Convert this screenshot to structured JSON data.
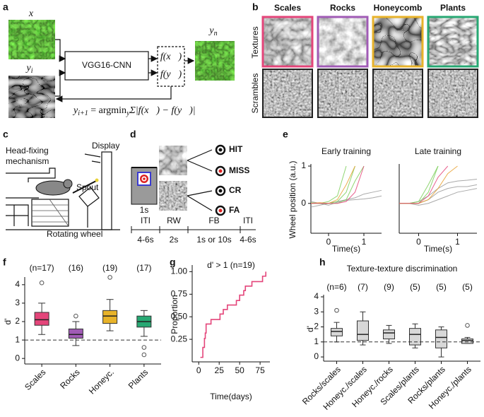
{
  "panels": {
    "a": {
      "letter": "a",
      "input": "x",
      "init": {
        "text": "y",
        "sub": "i"
      },
      "network": "VGG16-CNN",
      "features": [
        "f(x⃗)",
        "f(y⃗)"
      ],
      "output": {
        "text": "y",
        "sub": "n"
      },
      "equation": {
        "lhs": "y",
        "lhs_sub": "i+1",
        "op": " = argmin",
        "op_sub": "y",
        "rhs": "Σ|f(x⃗) − f(y⃗)|"
      }
    },
    "b": {
      "letter": "b",
      "columns": [
        {
          "name": "Scales",
          "color": "#e4457a"
        },
        {
          "name": "Rocks",
          "color": "#a05bb5"
        },
        {
          "name": "Honeycomb",
          "color": "#e8b32a"
        },
        {
          "name": "Plants",
          "color": "#27a873"
        }
      ],
      "rows": [
        "Textures",
        "Scrambles"
      ]
    },
    "c": {
      "letter": "c",
      "head_fixing": [
        "Head-fixing",
        "mechanism"
      ],
      "spout": "Spout",
      "display": "Display",
      "wheel": "Rotating wheel"
    },
    "d": {
      "letter": "d",
      "stim": "1s",
      "outcomes": [
        {
          "label": "HIT",
          "color": "#222222"
        },
        {
          "label": "MISS",
          "color": "#c0243a"
        },
        {
          "label": "CR",
          "color": "#222222"
        },
        {
          "label": "FA",
          "color": "#c0243a"
        }
      ],
      "timeline": [
        {
          "phase": "ITI",
          "duration": "4-6s"
        },
        {
          "phase": "RW",
          "duration": "2s"
        },
        {
          "phase": "FB",
          "duration": "1s or 10s"
        },
        {
          "phase": "ITI",
          "duration": "4-6s"
        }
      ]
    },
    "e": {
      "letter": "e"
    },
    "f": {
      "letter": "f"
    },
    "g": {
      "letter": "g"
    },
    "h": {
      "letter": "h"
    }
  },
  "chart_data": [
    {
      "type": "line",
      "title": "Early training",
      "ylabel": "Wheel position (a.u.)",
      "xlabel": "Time(s)",
      "x": [
        -0.5,
        -0.25,
        0,
        0.25,
        0.5,
        0.75,
        1.0,
        1.25,
        1.5
      ],
      "xlim": [
        -0.5,
        1.5
      ],
      "xticks": [
        0,
        1
      ],
      "ylim": [
        -0.8,
        1.0
      ],
      "yticks": [
        0,
        1
      ],
      "series": [
        {
          "color": "#9a9a9a",
          "values": [
            0.05,
            0.0,
            -0.05,
            0.03,
            0.08,
            0.1,
            0.12,
            0.15,
            0.2
          ]
        },
        {
          "color": "#9a9a9a",
          "values": [
            -0.1,
            -0.05,
            0,
            0.05,
            0.1,
            0.15,
            0.25,
            0.3,
            0.35
          ]
        },
        {
          "color": "#7ccf5a",
          "values": [
            0,
            0,
            0,
            0.05,
            0.3,
            1.0,
            null,
            null,
            null
          ]
        },
        {
          "color": "#7ccf5a",
          "values": [
            0.02,
            0,
            0,
            0,
            0.1,
            0.6,
            1.0,
            null,
            null
          ]
        },
        {
          "color": "#7ccf5a",
          "values": [
            0,
            0,
            0.05,
            0.2,
            1.0,
            null,
            null,
            null,
            null
          ]
        },
        {
          "color": "#e8a030",
          "values": [
            0,
            0.02,
            0,
            0.1,
            0.5,
            1.0,
            null,
            null,
            null
          ]
        },
        {
          "color": "#e4457a",
          "values": [
            0,
            0,
            0,
            0,
            0.05,
            0.3,
            1.0,
            null,
            null
          ]
        }
      ]
    },
    {
      "type": "line",
      "title": "Late training",
      "xlabel": "Time(s)",
      "x": [
        -0.5,
        -0.25,
        0,
        0.25,
        0.5,
        0.75,
        1.0,
        1.25,
        1.5
      ],
      "xlim": [
        -0.5,
        1.5
      ],
      "xticks": [
        0,
        1
      ],
      "ylim": [
        -0.8,
        1.0
      ],
      "series": [
        {
          "color": "#9a9a9a",
          "values": [
            0,
            0,
            0.05,
            0.2,
            0.4,
            0.55,
            0.6,
            0.62,
            0.65
          ]
        },
        {
          "color": "#9a9a9a",
          "values": [
            0,
            0,
            0,
            0.1,
            0.3,
            0.4,
            0.45,
            0.45,
            0.5
          ]
        },
        {
          "color": "#9a9a9a",
          "values": [
            0,
            0,
            -0.05,
            0,
            0.1,
            0.2,
            0.3,
            0.35,
            0.4
          ]
        },
        {
          "color": "#7ccf5a",
          "values": [
            0,
            0,
            0,
            0.3,
            1.0,
            null,
            null,
            null,
            null
          ]
        },
        {
          "color": "#7ccf5a",
          "values": [
            0,
            0,
            0.05,
            0.5,
            1.0,
            null,
            null,
            null,
            null
          ]
        },
        {
          "color": "#e8a030",
          "values": [
            0,
            0,
            0,
            0.1,
            0.4,
            0.8,
            1.0,
            null,
            null
          ]
        },
        {
          "color": "#e4457a",
          "values": [
            0,
            0,
            0,
            0.2,
            0.7,
            1.0,
            null,
            null,
            null
          ]
        }
      ]
    },
    {
      "type": "box",
      "ylabel": "d'",
      "categories": [
        "Scales",
        "Rocks",
        "Honeyc.",
        "Plants"
      ],
      "n_labels": [
        "(n=17)",
        "(16)",
        "(19)",
        "(17)"
      ],
      "colors": [
        "#e4457a",
        "#a05bb5",
        "#e8b32a",
        "#27a873"
      ],
      "ylim": [
        -0.3,
        4.3
      ],
      "yticks": [
        0,
        1,
        2,
        3,
        4
      ],
      "hline": 1,
      "boxes": [
        {
          "whislo": 1.3,
          "q1": 1.8,
          "med": 2.1,
          "q3": 2.5,
          "whishi": 3.0,
          "fliers": [
            4.1
          ]
        },
        {
          "whislo": 0.7,
          "q1": 1.1,
          "med": 1.3,
          "q3": 1.6,
          "whishi": 2.0,
          "fliers": [
            2.3
          ]
        },
        {
          "whislo": 1.5,
          "q1": 1.9,
          "med": 2.3,
          "q3": 2.6,
          "whishi": 3.2,
          "fliers": [
            4.4
          ]
        },
        {
          "whislo": 1.2,
          "q1": 1.7,
          "med": 2.0,
          "q3": 2.3,
          "whishi": 2.6,
          "fliers": [
            0.6,
            0.2
          ]
        }
      ]
    },
    {
      "type": "line",
      "step": "post",
      "title": "d' > 1 (n=19)",
      "xlabel": "Time(days)",
      "ylabel": "Proportion",
      "color": "#e4457a",
      "x": [
        2,
        4,
        5,
        7,
        8,
        9,
        14,
        15,
        25,
        26,
        30,
        35,
        45,
        46,
        50,
        55,
        57,
        63,
        65,
        75,
        78,
        80,
        82
      ],
      "values": [
        0.05,
        0.05,
        0.16,
        0.26,
        0.32,
        0.42,
        0.42,
        0.47,
        0.47,
        0.53,
        0.58,
        0.63,
        0.63,
        0.68,
        0.74,
        0.79,
        0.84,
        0.84,
        0.89,
        0.89,
        0.95,
        0.95,
        1.0
      ],
      "xlim": [
        -8,
        87
      ],
      "xticks": [
        0,
        25,
        50,
        75
      ],
      "ylim": [
        0,
        1.05
      ],
      "yticks": [
        0.25,
        {
          "value": 0.5,
          "label": "0.50"
        },
        {
          "value": 0.75,
          "label": "0.75"
        },
        {
          "value": 1,
          "label": "1.00"
        }
      ]
    },
    {
      "type": "box",
      "title": "Texture-texture discrimination",
      "ylabel": "d'",
      "categories": [
        "Rocks/scales",
        "Honeyc./scales",
        "Honeyc./rocks",
        "Scales/plants",
        "Rocks/plants",
        "Honeyc./plants"
      ],
      "n_labels": [
        "(n=6)",
        "(7)",
        "(9)",
        "(5)",
        "(5)",
        "(5)"
      ],
      "colors": [
        "#d8d8d8",
        "#d8d8d8",
        "#d8d8d8",
        "#d8d8d8",
        "#d8d8d8",
        "#d8d8d8"
      ],
      "ylim": [
        -0.28,
        4.0
      ],
      "yticks": [
        0,
        1,
        2,
        3,
        4
      ],
      "hline": 1,
      "boxes": [
        {
          "whislo": 1.0,
          "q1": 1.4,
          "med": 1.7,
          "q3": 1.9,
          "whishi": 2.3,
          "fliers": [
            3.1
          ]
        },
        {
          "whislo": 0.8,
          "q1": 1.1,
          "med": 1.5,
          "q3": 2.4,
          "whishi": 3.0,
          "fliers": []
        },
        {
          "whislo": 0.9,
          "q1": 1.2,
          "med": 1.6,
          "q3": 1.8,
          "whishi": 2.1,
          "fliers": []
        },
        {
          "whislo": 0.6,
          "q1": 0.8,
          "med": 1.5,
          "q3": 1.9,
          "whishi": 2.2,
          "fliers": []
        },
        {
          "whislo": 0.0,
          "q1": 0.6,
          "med": 1.3,
          "q3": 1.8,
          "whishi": 2.0,
          "fliers": []
        },
        {
          "whislo": 0.9,
          "q1": 0.9,
          "med": 1.1,
          "q3": 1.2,
          "whishi": 1.3,
          "fliers": [
            2.1
          ]
        }
      ]
    }
  ]
}
